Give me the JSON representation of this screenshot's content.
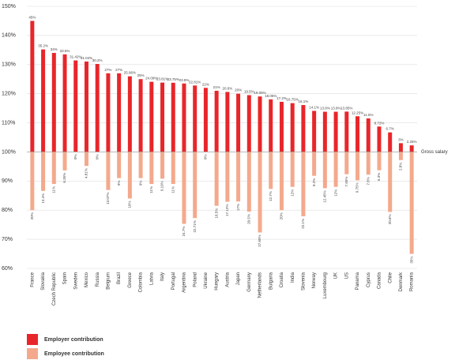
{
  "chart_data": {
    "type": "bar",
    "categories": [
      "France",
      "Slovakia",
      "Czech Republic",
      "Spain",
      "Sweden",
      "Mexico",
      "Russia",
      "Belgium",
      "Brazil",
      "Greece",
      "Colombia",
      "Latvia",
      "Italy",
      "Portugal",
      "Argentina",
      "Poland",
      "Ukraine",
      "Hungary",
      "Austria",
      "Japan",
      "Germany",
      "Netherlands",
      "Bulgaria",
      "Croatia",
      "India",
      "Slovenia",
      "Norway",
      "Luxembourg",
      "UK",
      "US",
      "Panama",
      "Cyprus",
      "Canada",
      "Chile",
      "Denmark",
      "Romania"
    ],
    "series": [
      {
        "name": "Employer contribution",
        "color": "#e8262a",
        "direction": "up",
        "values": [
          45,
          35.2,
          34,
          33.5,
          31.42,
          31.04,
          30.2,
          27,
          27,
          25.96,
          25,
          24.09,
          23.81,
          23.75,
          23.5,
          22.81,
          22,
          21,
          20.6,
          20,
          19.5,
          19.05,
          18.05,
          17.2,
          16.75,
          16.1,
          14.1,
          13.8,
          13.8,
          13.85,
          12.25,
          11.5,
          8.72,
          6.7,
          3,
          2.25
        ],
        "value_labels": [
          "45%",
          "35.2%",
          "34%",
          "33.5%",
          "31.42%",
          "31.04%",
          "30.2%",
          "27%",
          "27%",
          "25.96%",
          "25%",
          "24.09%",
          "23.81%",
          "23.75%",
          "23.5%",
          "22.81%",
          "22%",
          "21%",
          "20.6%",
          "20%",
          "19.5%",
          "19.05%",
          "18.05%",
          "17.2%",
          "16.75%",
          "16.1%",
          "14.1%",
          "13.8%",
          "13.8%",
          "13.85%",
          "12.25%",
          "11.5%",
          "8.72%",
          "6.7%",
          "3%",
          "2.25%"
        ]
      },
      {
        "name": "Employee contribution",
        "color": "#f4a98c",
        "direction": "down",
        "values": [
          20,
          13.4,
          11,
          6.35,
          0,
          4.81,
          0,
          13.07,
          9,
          16,
          9,
          11,
          9.19,
          11,
          24.7,
          22.71,
          0,
          18.5,
          17.12,
          17,
          20.5,
          27.65,
          12.7,
          20,
          12,
          22.1,
          8.2,
          12.45,
          12,
          7.65,
          9.75,
          7.8,
          6.3,
          20.6,
          2.8,
          35
        ],
        "value_labels": [
          "20%",
          "13.4%",
          "11%",
          "6.35%",
          "0%",
          "4.81%",
          "0%",
          "13.07%",
          "9%",
          "16%",
          "9%",
          "11%",
          "9.19%",
          "11%",
          "24.7%",
          "22.71%",
          "0%",
          "18.5%",
          "17.12%",
          "17%",
          "20.5%",
          "27.65%",
          "12.7%",
          "20%",
          "12%",
          "22.1%",
          "8.2%",
          "12.45%",
          "12%",
          "7.65%",
          "9.75%",
          "7.8%",
          "6.3%",
          "20.6%",
          "2.8%",
          "35%"
        ]
      }
    ],
    "baseline": {
      "value": 100,
      "label": "Gross salary"
    },
    "ylim": [
      60,
      150
    ],
    "yticks": [
      {
        "value": 60,
        "label": "60%"
      },
      {
        "value": 70,
        "label": "70%"
      },
      {
        "value": 80,
        "label": "80%"
      },
      {
        "value": 90,
        "label": "90%"
      },
      {
        "value": 100,
        "label": "100%"
      },
      {
        "value": 110,
        "label": "110%"
      },
      {
        "value": 120,
        "label": "120%"
      },
      {
        "value": 130,
        "label": "130%"
      },
      {
        "value": 140,
        "label": "140%"
      },
      {
        "value": 150,
        "label": "150%"
      }
    ],
    "grid": true
  }
}
